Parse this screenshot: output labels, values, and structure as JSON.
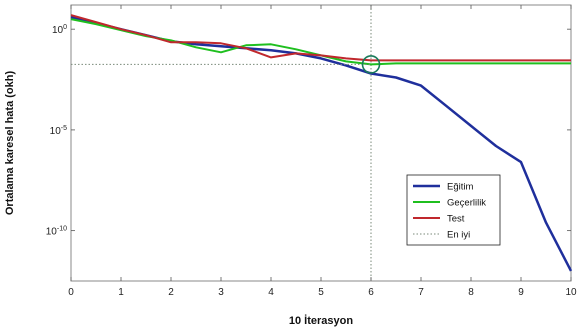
{
  "chart_data": {
    "type": "line",
    "xlabel": "10 İterasyon",
    "ylabel": "Ortalama karesel hata (okh)",
    "xlim": [
      0,
      10
    ],
    "ylim_log10": [
      -12.5,
      1.2
    ],
    "y_scale": "log",
    "x_ticks": [
      "0",
      "1",
      "2",
      "3",
      "4",
      "5",
      "6",
      "7",
      "8",
      "9",
      "10"
    ],
    "y_ticks": [
      {
        "exp": 0,
        "label": "10^0"
      },
      {
        "exp": -5,
        "label": "10^-5"
      },
      {
        "exp": -10,
        "label": "10^-10"
      }
    ],
    "legend_position": "lower-right",
    "series": [
      {
        "name": "Eğitim",
        "color": "#1f2f9c",
        "width": 2.5,
        "dash": "",
        "x": [
          0,
          0.5,
          1,
          1.5,
          2,
          2.5,
          3,
          3.5,
          4,
          4.5,
          5,
          5.5,
          6,
          6.5,
          7,
          7.5,
          8,
          8.5,
          9,
          9.5,
          10
        ],
        "log10y": [
          0.6,
          0.3,
          0.0,
          -0.3,
          -0.6,
          -0.75,
          -0.85,
          -0.95,
          -1.05,
          -1.2,
          -1.45,
          -1.8,
          -2.2,
          -2.4,
          -2.8,
          -3.8,
          -4.8,
          -5.8,
          -6.6,
          -9.6,
          -12.0
        ]
      },
      {
        "name": "Geçerlilik",
        "color": "#1fbf1f",
        "width": 2,
        "dash": "",
        "x": [
          0,
          0.5,
          1,
          1.5,
          2,
          2.5,
          3,
          3.5,
          4,
          4.5,
          5,
          5.5,
          6,
          6.5,
          7,
          7.5,
          8,
          8.5,
          9,
          9.5,
          10
        ],
        "log10y": [
          0.5,
          0.25,
          -0.05,
          -0.35,
          -0.55,
          -0.9,
          -1.15,
          -0.8,
          -0.75,
          -1.0,
          -1.3,
          -1.6,
          -1.75,
          -1.7,
          -1.7,
          -1.7,
          -1.7,
          -1.7,
          -1.7,
          -1.7,
          -1.7
        ]
      },
      {
        "name": "Test",
        "color": "#c0282d",
        "width": 2,
        "dash": "",
        "x": [
          0,
          0.5,
          1,
          1.5,
          2,
          2.5,
          3,
          3.5,
          4,
          4.5,
          5,
          5.5,
          6,
          6.5,
          7,
          7.5,
          7.9,
          8,
          8.5,
          9,
          9.5,
          10
        ],
        "log10y": [
          0.7,
          0.35,
          0.0,
          -0.3,
          -0.65,
          -0.65,
          -0.7,
          -0.95,
          -1.4,
          -1.2,
          -1.3,
          -1.45,
          -1.55,
          -1.55,
          -1.55,
          -1.55,
          -1.55,
          -1.55,
          -1.55,
          -1.55,
          -1.55,
          -1.55
        ]
      },
      {
        "name": "En iyi",
        "color": "#7a8a7a",
        "width": 1,
        "dash": "1.5,2",
        "x": [
          0,
          6
        ],
        "log10y": [
          -1.75,
          -1.75
        ]
      }
    ],
    "best_epoch": 6,
    "best_log10y": -1.75,
    "best_line_color": "#7a8a7a",
    "best_marker_color": "#1a7a5a"
  }
}
